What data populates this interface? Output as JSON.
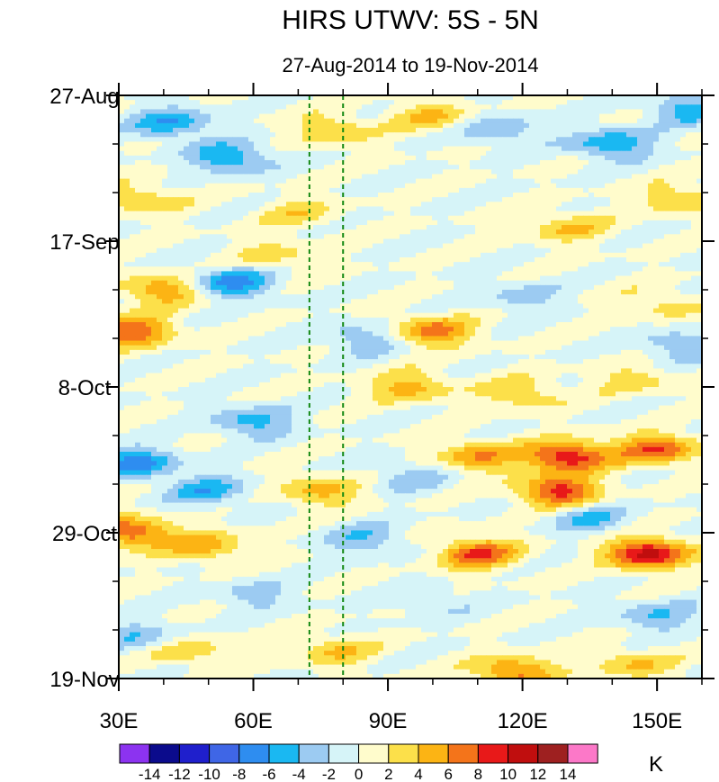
{
  "chart_data": {
    "type": "heatmap",
    "title": "HIRS UTWV: 5S - 5N",
    "subtitle": "27-Aug-2014 to 19-Nov-2014",
    "xlabel": "",
    "ylabel": "",
    "x_range": [
      30,
      160
    ],
    "y_range_days": [
      0,
      84
    ],
    "x_ticks": [
      {
        "value": 30,
        "label": "30E"
      },
      {
        "value": 60,
        "label": "60E"
      },
      {
        "value": 90,
        "label": "90E"
      },
      {
        "value": 120,
        "label": "120E"
      },
      {
        "value": 150,
        "label": "150E"
      }
    ],
    "x_minor_step": 10,
    "y_ticks": [
      {
        "day": 0,
        "label": "27-Aug"
      },
      {
        "day": 21,
        "label": "17-Sep"
      },
      {
        "day": 42,
        "label": "8-Oct"
      },
      {
        "day": 63,
        "label": "29-Oct"
      },
      {
        "day": 84,
        "label": "19-Nov"
      }
    ],
    "y_minor_step_days": 7,
    "reference_lines": [
      {
        "x": 72.5,
        "style": "dashed",
        "color": "#118811"
      },
      {
        "x": 80,
        "style": "dashed",
        "color": "#118811"
      }
    ],
    "colorbar": {
      "unit": "K",
      "levels": [
        "-14",
        "-12",
        "-10",
        "-8",
        "-6",
        "-4",
        "-2",
        "0",
        "2",
        "4",
        "6",
        "8",
        "10",
        "12",
        "14"
      ],
      "colors": [
        "#8c33f0",
        "#0b0b8c",
        "#1f1fcc",
        "#3f66e6",
        "#2e8df0",
        "#1ab8f2",
        "#9ccbf2",
        "#d6f4f8",
        "#fffccc",
        "#fce04a",
        "#fcb414",
        "#f4741a",
        "#e81919",
        "#c00e0e",
        "#9e2020",
        "#fc78c8"
      ]
    },
    "anomaly_features": [
      {
        "lon": 42,
        "day": 4,
        "value": -6
      },
      {
        "lon": 55,
        "day": 9,
        "value": -6
      },
      {
        "lon": 78,
        "day": 5,
        "value": 4
      },
      {
        "lon": 100,
        "day": 3,
        "value": 4
      },
      {
        "lon": 115,
        "day": 5,
        "value": -4
      },
      {
        "lon": 140,
        "day": 7,
        "value": -6
      },
      {
        "lon": 157,
        "day": 2,
        "value": -5
      },
      {
        "lon": 35,
        "day": 15,
        "value": 4
      },
      {
        "lon": 70,
        "day": 17,
        "value": 3
      },
      {
        "lon": 130,
        "day": 19,
        "value": 4
      },
      {
        "lon": 155,
        "day": 15,
        "value": 4
      },
      {
        "lon": 65,
        "day": 23,
        "value": 3
      },
      {
        "lon": 55,
        "day": 27,
        "value": -7
      },
      {
        "lon": 40,
        "day": 28,
        "value": 6
      },
      {
        "lon": 33,
        "day": 34,
        "value": 8
      },
      {
        "lon": 100,
        "day": 34,
        "value": 7
      },
      {
        "lon": 85,
        "day": 35,
        "value": -4
      },
      {
        "lon": 120,
        "day": 29,
        "value": -3
      },
      {
        "lon": 150,
        "day": 30,
        "value": 3
      },
      {
        "lon": 155,
        "day": 36,
        "value": -4
      },
      {
        "lon": 95,
        "day": 42,
        "value": 5
      },
      {
        "lon": 120,
        "day": 43,
        "value": 4
      },
      {
        "lon": 145,
        "day": 41,
        "value": 3
      },
      {
        "lon": 60,
        "day": 47,
        "value": -5
      },
      {
        "lon": 34,
        "day": 53,
        "value": -7
      },
      {
        "lon": 130,
        "day": 52,
        "value": 10
      },
      {
        "lon": 150,
        "day": 51,
        "value": 8
      },
      {
        "lon": 110,
        "day": 52,
        "value": 6
      },
      {
        "lon": 75,
        "day": 57,
        "value": 5
      },
      {
        "lon": 50,
        "day": 57,
        "value": -5
      },
      {
        "lon": 95,
        "day": 55,
        "value": -3
      },
      {
        "lon": 128,
        "day": 57,
        "value": 9
      },
      {
        "lon": 33,
        "day": 63,
        "value": 8
      },
      {
        "lon": 50,
        "day": 65,
        "value": 5
      },
      {
        "lon": 110,
        "day": 66,
        "value": 8
      },
      {
        "lon": 148,
        "day": 66,
        "value": 11
      },
      {
        "lon": 85,
        "day": 64,
        "value": -4
      },
      {
        "lon": 135,
        "day": 61,
        "value": -4
      },
      {
        "lon": 60,
        "day": 72,
        "value": -3
      },
      {
        "lon": 100,
        "day": 73,
        "value": -2
      },
      {
        "lon": 150,
        "day": 75,
        "value": -4
      },
      {
        "lon": 45,
        "day": 80,
        "value": 4
      },
      {
        "lon": 78,
        "day": 80,
        "value": 4
      },
      {
        "lon": 118,
        "day": 83,
        "value": 7
      },
      {
        "lon": 145,
        "day": 82,
        "value": 4
      },
      {
        "lon": 35,
        "day": 78,
        "value": -4
      }
    ]
  }
}
